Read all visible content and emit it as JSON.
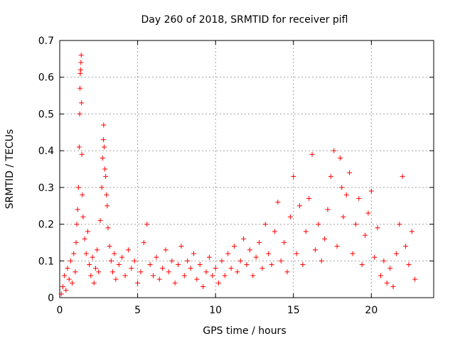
{
  "chart_data": {
    "type": "scatter",
    "title": "Day 260 of 2018, SRMTID for receiver pifl",
    "xlabel": "GPS time / hours",
    "ylabel": "SRMTID / TECUs",
    "xlim": [
      0,
      24
    ],
    "ylim": [
      0,
      0.7
    ],
    "x_ticks": [
      0,
      5,
      10,
      15,
      20
    ],
    "x_tick_labels": [
      "0",
      "5",
      "10",
      "15",
      "20"
    ],
    "y_ticks": [
      0,
      0.1,
      0.2,
      0.3,
      0.4,
      0.5,
      0.6,
      0.7
    ],
    "y_tick_labels": [
      "0",
      "0.1",
      "0.2",
      "0.3",
      "0.4",
      "0.5",
      "0.6",
      "0.7"
    ],
    "grid": true,
    "marker": "plus",
    "colors": {
      "series": "#ff0000",
      "grid": "#a0a0a0",
      "axis": "#000000"
    },
    "series": [
      {
        "name": "SRMTID",
        "points": [
          [
            0.1,
            0.01
          ],
          [
            0.2,
            0.03
          ],
          [
            0.3,
            0.06
          ],
          [
            0.4,
            0.02
          ],
          [
            0.5,
            0.08
          ],
          [
            0.6,
            0.05
          ],
          [
            0.7,
            0.1
          ],
          [
            0.8,
            0.04
          ],
          [
            0.9,
            0.12
          ],
          [
            1.0,
            0.07
          ],
          [
            1.05,
            0.15
          ],
          [
            1.1,
            0.2
          ],
          [
            1.15,
            0.24
          ],
          [
            1.2,
            0.3
          ],
          [
            1.25,
            0.41
          ],
          [
            1.28,
            0.5
          ],
          [
            1.3,
            0.57
          ],
          [
            1.32,
            0.61
          ],
          [
            1.34,
            0.62
          ],
          [
            1.36,
            0.64
          ],
          [
            1.38,
            0.66
          ],
          [
            1.4,
            0.53
          ],
          [
            1.42,
            0.39
          ],
          [
            1.45,
            0.28
          ],
          [
            1.5,
            0.22
          ],
          [
            1.6,
            0.16
          ],
          [
            1.7,
            0.12
          ],
          [
            1.8,
            0.18
          ],
          [
            1.9,
            0.09
          ],
          [
            2.0,
            0.06
          ],
          [
            2.1,
            0.11
          ],
          [
            2.2,
            0.04
          ],
          [
            2.3,
            0.08
          ],
          [
            2.4,
            0.13
          ],
          [
            2.5,
            0.07
          ],
          [
            2.6,
            0.21
          ],
          [
            2.7,
            0.3
          ],
          [
            2.75,
            0.38
          ],
          [
            2.8,
            0.43
          ],
          [
            2.82,
            0.47
          ],
          [
            2.85,
            0.41
          ],
          [
            2.9,
            0.35
          ],
          [
            2.95,
            0.33
          ],
          [
            3.0,
            0.28
          ],
          [
            3.05,
            0.25
          ],
          [
            3.1,
            0.19
          ],
          [
            3.2,
            0.14
          ],
          [
            3.3,
            0.1
          ],
          [
            3.4,
            0.07
          ],
          [
            3.5,
            0.12
          ],
          [
            3.6,
            0.05
          ],
          [
            3.8,
            0.09
          ],
          [
            4.0,
            0.11
          ],
          [
            4.2,
            0.06
          ],
          [
            4.4,
            0.13
          ],
          [
            4.6,
            0.08
          ],
          [
            4.8,
            0.1
          ],
          [
            5.0,
            0.04
          ],
          [
            5.2,
            0.07
          ],
          [
            5.4,
            0.15
          ],
          [
            5.6,
            0.2
          ],
          [
            5.8,
            0.09
          ],
          [
            6.0,
            0.06
          ],
          [
            6.2,
            0.11
          ],
          [
            6.4,
            0.05
          ],
          [
            6.6,
            0.08
          ],
          [
            6.8,
            0.13
          ],
          [
            7.0,
            0.07
          ],
          [
            7.2,
            0.1
          ],
          [
            7.4,
            0.04
          ],
          [
            7.6,
            0.09
          ],
          [
            7.8,
            0.14
          ],
          [
            8.0,
            0.06
          ],
          [
            8.2,
            0.1
          ],
          [
            8.4,
            0.08
          ],
          [
            8.6,
            0.12
          ],
          [
            8.8,
            0.05
          ],
          [
            9.0,
            0.09
          ],
          [
            9.2,
            0.03
          ],
          [
            9.4,
            0.07
          ],
          [
            9.6,
            0.11
          ],
          [
            9.8,
            0.06
          ],
          [
            10.0,
            0.08
          ],
          [
            10.2,
            0.04
          ],
          [
            10.4,
            0.1
          ],
          [
            10.6,
            0.06
          ],
          [
            10.8,
            0.12
          ],
          [
            11.0,
            0.08
          ],
          [
            11.2,
            0.14
          ],
          [
            11.4,
            0.07
          ],
          [
            11.6,
            0.1
          ],
          [
            11.8,
            0.16
          ],
          [
            12.0,
            0.09
          ],
          [
            12.2,
            0.13
          ],
          [
            12.4,
            0.06
          ],
          [
            12.6,
            0.11
          ],
          [
            12.8,
            0.15
          ],
          [
            13.0,
            0.08
          ],
          [
            13.2,
            0.2
          ],
          [
            13.4,
            0.12
          ],
          [
            13.6,
            0.09
          ],
          [
            13.8,
            0.18
          ],
          [
            14.0,
            0.26
          ],
          [
            14.2,
            0.1
          ],
          [
            14.4,
            0.15
          ],
          [
            14.6,
            0.07
          ],
          [
            14.8,
            0.22
          ],
          [
            15.0,
            0.33
          ],
          [
            15.2,
            0.12
          ],
          [
            15.4,
            0.25
          ],
          [
            15.6,
            0.09
          ],
          [
            15.8,
            0.18
          ],
          [
            16.0,
            0.27
          ],
          [
            16.2,
            0.39
          ],
          [
            16.4,
            0.13
          ],
          [
            16.6,
            0.2
          ],
          [
            16.8,
            0.1
          ],
          [
            17.0,
            0.16
          ],
          [
            17.2,
            0.24
          ],
          [
            17.4,
            0.33
          ],
          [
            17.6,
            0.4
          ],
          [
            17.8,
            0.14
          ],
          [
            18.0,
            0.38
          ],
          [
            18.1,
            0.3
          ],
          [
            18.2,
            0.22
          ],
          [
            18.4,
            0.28
          ],
          [
            18.6,
            0.34
          ],
          [
            18.8,
            0.12
          ],
          [
            19.0,
            0.2
          ],
          [
            19.2,
            0.27
          ],
          [
            19.4,
            0.09
          ],
          [
            19.6,
            0.17
          ],
          [
            19.8,
            0.23
          ],
          [
            20.0,
            0.29
          ],
          [
            20.2,
            0.11
          ],
          [
            20.4,
            0.19
          ],
          [
            20.6,
            0.06
          ],
          [
            20.8,
            0.1
          ],
          [
            21.0,
            0.04
          ],
          [
            21.2,
            0.08
          ],
          [
            21.4,
            0.03
          ],
          [
            21.6,
            0.12
          ],
          [
            21.8,
            0.2
          ],
          [
            22.0,
            0.33
          ],
          [
            22.2,
            0.14
          ],
          [
            22.4,
            0.09
          ],
          [
            22.6,
            0.18
          ],
          [
            22.8,
            0.05
          ]
        ]
      }
    ]
  }
}
